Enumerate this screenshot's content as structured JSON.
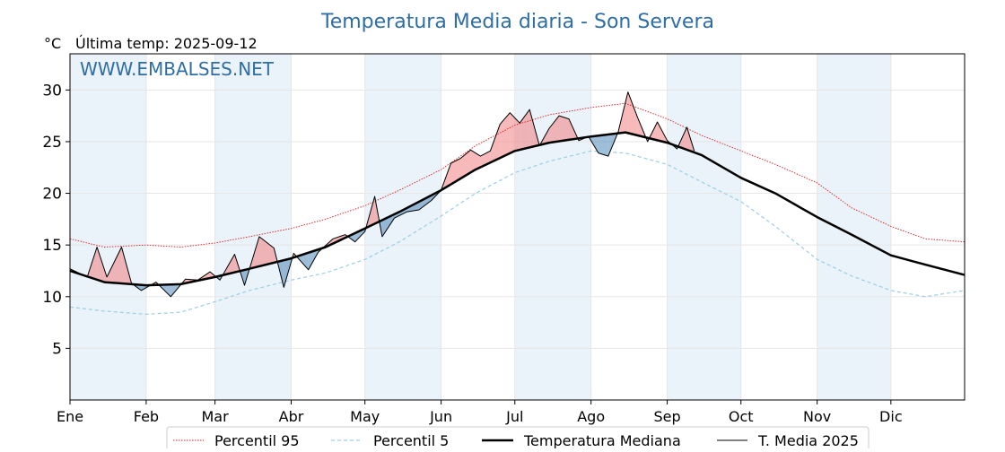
{
  "chart_data": {
    "type": "line",
    "title": "Temperatura Media diaria - Son Servera",
    "unit_label": "°C",
    "last_temp_label": "Última temp: 2025-09-12",
    "watermark": "WWW.EMBALSES.NET",
    "xlabel": "",
    "ylabel": "°C",
    "ylim": [
      0,
      33.5
    ],
    "y_ticks": [
      5,
      10,
      15,
      20,
      25,
      30
    ],
    "x_ticks": [
      "Ene",
      "Feb",
      "Mar",
      "Abr",
      "May",
      "Jun",
      "Jul",
      "Ago",
      "Sep",
      "Oct",
      "Nov",
      "Dic"
    ],
    "x_tick_days": [
      1,
      32,
      60,
      91,
      121,
      152,
      182,
      213,
      244,
      274,
      305,
      335
    ],
    "xlim_days": [
      1,
      365
    ],
    "grid": true,
    "legend_position": "bottom-center",
    "colors": {
      "title": "#2f6ea5",
      "watermark": "#2f6ea5",
      "p95": "#e3191c",
      "p5": "#9ccfe0",
      "median": "#000000",
      "media2025": "#000000",
      "fill_above": "#f08080",
      "fill_below": "#4f87b8",
      "month_band": "#eaf2fa"
    },
    "series": [
      {
        "name": "Percentil 95",
        "style": "dotted-red",
        "points": [
          [
            1,
            15.6
          ],
          [
            15,
            14.8
          ],
          [
            32,
            15.0
          ],
          [
            46,
            14.8
          ],
          [
            60,
            15.2
          ],
          [
            74,
            15.8
          ],
          [
            91,
            16.6
          ],
          [
            105,
            17.5
          ],
          [
            121,
            18.8
          ],
          [
            135,
            20.3
          ],
          [
            152,
            22.3
          ],
          [
            166,
            24.6
          ],
          [
            182,
            26.6
          ],
          [
            196,
            27.6
          ],
          [
            213,
            28.3
          ],
          [
            227,
            28.7
          ],
          [
            244,
            27.2
          ],
          [
            258,
            25.6
          ],
          [
            274,
            24.1
          ],
          [
            288,
            22.8
          ],
          [
            305,
            21.0
          ],
          [
            319,
            18.6
          ],
          [
            335,
            16.8
          ],
          [
            349,
            15.6
          ],
          [
            365,
            15.3
          ]
        ]
      },
      {
        "name": "Percentil 5",
        "style": "dashed-lightblue",
        "points": [
          [
            1,
            9.0
          ],
          [
            15,
            8.6
          ],
          [
            32,
            8.3
          ],
          [
            46,
            8.5
          ],
          [
            60,
            9.5
          ],
          [
            74,
            10.6
          ],
          [
            91,
            11.6
          ],
          [
            105,
            12.3
          ],
          [
            121,
            13.6
          ],
          [
            135,
            15.3
          ],
          [
            152,
            17.8
          ],
          [
            166,
            20.0
          ],
          [
            182,
            22.0
          ],
          [
            196,
            23.1
          ],
          [
            213,
            24.1
          ],
          [
            227,
            23.9
          ],
          [
            244,
            22.8
          ],
          [
            258,
            21.1
          ],
          [
            274,
            19.2
          ],
          [
            288,
            16.8
          ],
          [
            305,
            13.6
          ],
          [
            319,
            12.0
          ],
          [
            335,
            10.6
          ],
          [
            349,
            10.0
          ],
          [
            365,
            10.6
          ]
        ]
      },
      {
        "name": "Temperatura Mediana",
        "style": "thick-black",
        "points": [
          [
            1,
            12.5
          ],
          [
            15,
            11.4
          ],
          [
            32,
            11.1
          ],
          [
            46,
            11.2
          ],
          [
            60,
            11.9
          ],
          [
            74,
            12.7
          ],
          [
            91,
            13.7
          ],
          [
            105,
            14.8
          ],
          [
            121,
            16.6
          ],
          [
            135,
            18.2
          ],
          [
            152,
            20.3
          ],
          [
            166,
            22.3
          ],
          [
            182,
            24.1
          ],
          [
            196,
            24.9
          ],
          [
            213,
            25.5
          ],
          [
            227,
            25.9
          ],
          [
            244,
            24.9
          ],
          [
            258,
            23.7
          ],
          [
            274,
            21.5
          ],
          [
            288,
            20.0
          ],
          [
            305,
            17.7
          ],
          [
            319,
            16.0
          ],
          [
            335,
            14.0
          ],
          [
            349,
            13.1
          ],
          [
            365,
            12.1
          ]
        ]
      },
      {
        "name": "T. Media 2025",
        "style": "thin-black",
        "points": [
          [
            1,
            12.7
          ],
          [
            8,
            11.9
          ],
          [
            12,
            14.8
          ],
          [
            16,
            11.9
          ],
          [
            22,
            14.8
          ],
          [
            26,
            11.3
          ],
          [
            30,
            10.6
          ],
          [
            36,
            11.4
          ],
          [
            42,
            10.0
          ],
          [
            48,
            11.7
          ],
          [
            53,
            11.6
          ],
          [
            58,
            12.4
          ],
          [
            62,
            11.6
          ],
          [
            68,
            14.1
          ],
          [
            72,
            11.1
          ],
          [
            78,
            15.8
          ],
          [
            84,
            14.7
          ],
          [
            88,
            10.9
          ],
          [
            92,
            14.2
          ],
          [
            98,
            12.6
          ],
          [
            102,
            14.3
          ],
          [
            108,
            15.6
          ],
          [
            113,
            16.0
          ],
          [
            117,
            15.3
          ],
          [
            121,
            16.3
          ],
          [
            125,
            19.7
          ],
          [
            128,
            15.8
          ],
          [
            133,
            17.6
          ],
          [
            138,
            18.2
          ],
          [
            143,
            18.4
          ],
          [
            148,
            19.3
          ],
          [
            152,
            20.3
          ],
          [
            156,
            22.9
          ],
          [
            160,
            23.4
          ],
          [
            164,
            24.2
          ],
          [
            168,
            23.6
          ],
          [
            172,
            24.1
          ],
          [
            176,
            26.7
          ],
          [
            180,
            27.8
          ],
          [
            184,
            26.8
          ],
          [
            188,
            28.1
          ],
          [
            192,
            24.6
          ],
          [
            196,
            26.3
          ],
          [
            200,
            27.5
          ],
          [
            204,
            27.2
          ],
          [
            208,
            25.1
          ],
          [
            212,
            25.5
          ],
          [
            216,
            23.9
          ],
          [
            220,
            23.6
          ],
          [
            224,
            25.9
          ],
          [
            228,
            29.8
          ],
          [
            232,
            27.3
          ],
          [
            236,
            25.0
          ],
          [
            240,
            26.9
          ],
          [
            244,
            25.1
          ],
          [
            248,
            24.3
          ],
          [
            252,
            26.4
          ],
          [
            255,
            24.1
          ]
        ]
      }
    ]
  },
  "legend": {
    "p95": "Percentil 95",
    "p5": "Percentil 5",
    "median": "Temperatura Mediana",
    "media2025": "T. Media 2025"
  }
}
